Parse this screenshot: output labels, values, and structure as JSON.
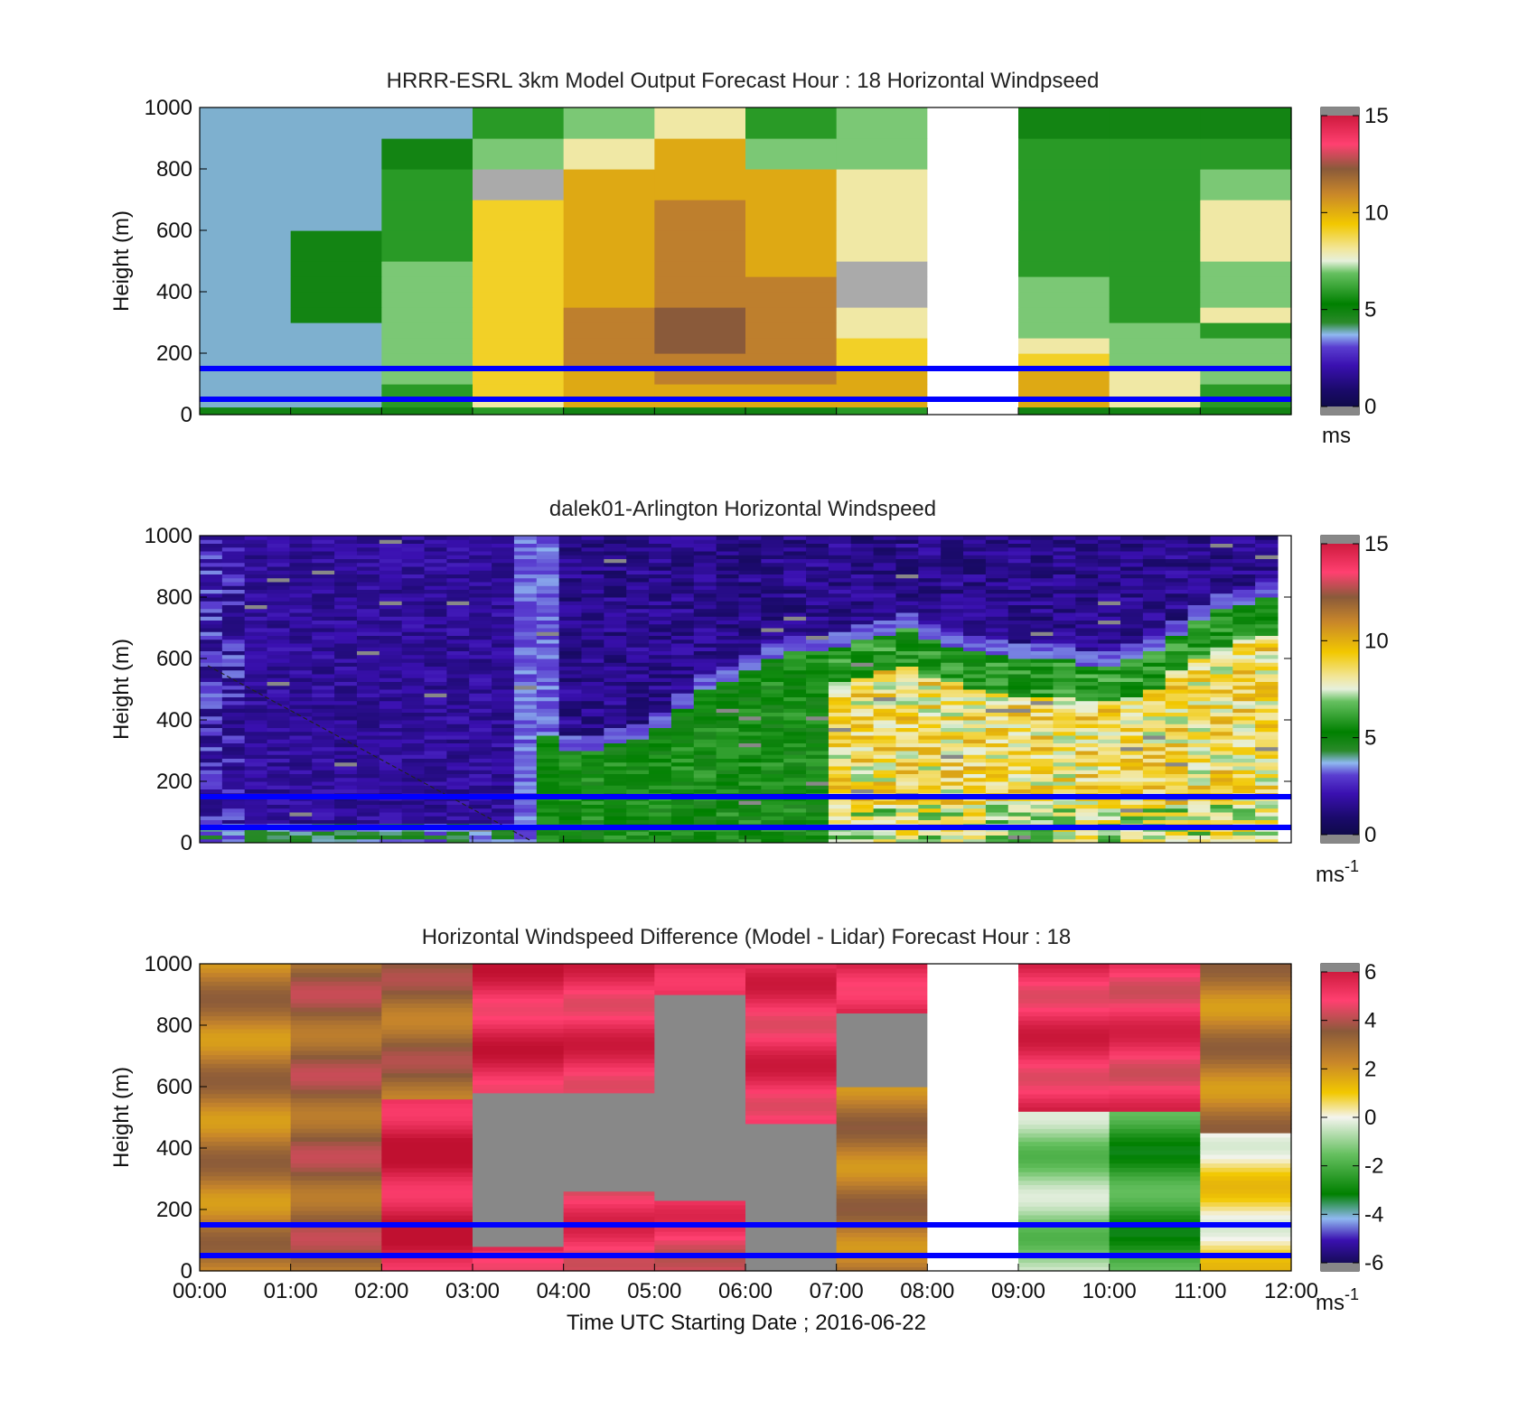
{
  "figure": {
    "xlabel": "Time UTC  Starting Date ; 2016-06-22"
  },
  "x_ticks": [
    "00:00",
    "01:00",
    "02:00",
    "03:00",
    "04:00",
    "05:00",
    "06:00",
    "07:00",
    "08:00",
    "09:00",
    "10:00",
    "11:00",
    "12:00"
  ],
  "chart_data": [
    {
      "type": "heatmap",
      "title": "HRRR-ESRL 3km Model Output   Forecast Hour : 18 Horizontal Windpseed",
      "ylabel": "Height (m)",
      "xlim": [
        0,
        12
      ],
      "ylim": [
        0,
        1000
      ],
      "y_ticks": [
        "0",
        "200",
        "400",
        "600",
        "800",
        "1000"
      ],
      "colorbar": {
        "ticks": [
          "0",
          "5",
          "10",
          "15"
        ],
        "unit_main": "ms",
        "unit_sup": "",
        "range": [
          0,
          15
        ]
      },
      "height_levels": [
        0,
        25,
        50,
        75,
        100,
        150,
        200,
        250,
        300,
        350,
        400,
        450,
        500,
        600,
        700,
        800,
        900,
        1000
      ],
      "time_bins_hours": [
        0,
        1,
        2,
        3,
        4,
        5,
        6,
        7,
        8,
        9,
        10,
        11,
        12
      ],
      "values": [
        [
          5,
          5,
          5,
          6,
          5,
          5,
          5,
          6,
          null,
          5,
          5,
          5
        ],
        [
          4,
          4,
          6,
          8,
          10,
          10,
          10,
          10,
          null,
          10,
          8,
          6
        ],
        [
          4,
          4,
          6,
          9,
          10,
          10,
          10,
          10,
          null,
          10,
          8,
          6
        ],
        [
          4,
          4,
          6,
          9,
          10,
          10,
          10,
          10,
          null,
          10,
          8,
          6
        ],
        [
          4,
          4,
          7,
          9,
          10,
          11,
          11,
          10,
          null,
          10,
          8,
          7
        ],
        [
          4,
          4,
          7,
          9,
          11,
          11,
          11,
          9,
          null,
          9,
          7,
          7
        ],
        [
          4,
          4,
          7,
          9,
          11,
          12,
          11,
          9,
          null,
          8,
          7,
          7
        ],
        [
          4,
          4,
          7,
          9,
          11,
          12,
          11,
          8,
          null,
          7,
          7,
          6
        ],
        [
          4,
          5,
          7,
          9,
          11,
          12,
          11,
          8,
          null,
          7,
          6,
          8
        ],
        [
          4,
          5,
          7,
          9,
          10,
          11,
          11,
          null,
          null,
          7,
          6,
          7
        ],
        [
          4,
          5,
          7,
          9,
          10,
          11,
          11,
          null,
          null,
          7,
          6,
          7
        ],
        [
          4,
          5,
          7,
          9,
          10,
          11,
          10,
          null,
          null,
          6,
          6,
          7
        ],
        [
          4,
          5,
          6,
          9,
          10,
          11,
          10,
          8,
          null,
          6,
          6,
          8
        ],
        [
          4,
          4,
          6,
          9,
          10,
          11,
          10,
          8,
          null,
          6,
          6,
          8
        ],
        [
          4,
          4,
          6,
          null,
          10,
          10,
          10,
          8,
          null,
          6,
          6,
          7
        ],
        [
          4,
          4,
          5,
          7,
          8,
          10,
          7,
          7,
          null,
          6,
          6,
          6
        ],
        [
          4,
          4,
          4,
          6,
          7,
          8,
          6,
          7,
          null,
          5,
          5,
          5
        ]
      ],
      "lines": [
        {
          "height": 50,
          "color": "#0000ff"
        },
        {
          "height": 150,
          "color": "#0000ff"
        }
      ]
    },
    {
      "type": "heatmap",
      "title": "dalek01-Arlington  Horizontal Windspeed",
      "ylabel": "Height (m)",
      "xlim": [
        0,
        12
      ],
      "ylim": [
        0,
        1000
      ],
      "y_ticks": [
        "0",
        "200",
        "400",
        "600",
        "800",
        "1000"
      ],
      "colorbar": {
        "ticks": [
          "0",
          "5",
          "10",
          "15"
        ],
        "unit_main": "ms",
        "unit_sup": "-1",
        "range": [
          0,
          15
        ]
      },
      "profile_top_m": [
        500,
        500,
        480,
        470,
        450,
        450,
        450,
        440,
        420,
        420,
        430,
        440,
        430,
        420,
        400,
        380,
        300,
        300,
        320,
        340,
        380,
        440,
        500,
        520,
        560,
        600,
        620,
        620,
        640,
        660,
        680,
        700,
        660,
        640,
        620,
        610,
        600,
        600,
        600,
        580,
        580,
        600,
        620,
        680,
        720,
        760,
        780,
        800
      ],
      "lidar_speed_summary": {
        "hours_0_3_5": "1.5-2.5",
        "hours_3_5_4": "3-4",
        "hours_4_7_low": "5-6",
        "hours_7_12_low": "7-10",
        "above_profile": "1-2.5"
      },
      "lines": [
        {
          "height": 50,
          "color": "#0000ff"
        },
        {
          "height": 150,
          "color": "#0000ff"
        }
      ]
    },
    {
      "type": "heatmap",
      "title": "Horizontal Windspeed Difference (Model - Lidar) Forecast Hour : 18",
      "ylabel": "Height (m)",
      "xlim": [
        0,
        12
      ],
      "ylim": [
        0,
        1000
      ],
      "y_ticks": [
        "0",
        "200",
        "400",
        "600",
        "800",
        "1000"
      ],
      "colorbar": {
        "ticks": [
          "-6",
          "-4",
          "-2",
          "0",
          "2",
          "4",
          "6"
        ],
        "unit_main": "ms",
        "unit_sup": "-1",
        "range": [
          -6,
          6
        ]
      },
      "blocks_m": [
        {
          "hour": 0,
          "segments": [
            [
              0,
              1000,
              2.5
            ]
          ]
        },
        {
          "hour": 1,
          "segments": [
            [
              0,
              1000,
              3.2
            ]
          ]
        },
        {
          "hour": 2,
          "segments": [
            [
              0,
              560,
              5.5
            ],
            [
              560,
              1000,
              3.0
            ]
          ]
        },
        {
          "hour": 3,
          "segments": [
            [
              0,
              80,
              5.2
            ],
            [
              80,
              580,
              null
            ],
            [
              580,
              1000,
              5.2
            ]
          ]
        },
        {
          "hour": 4,
          "segments": [
            [
              0,
              260,
              4.8
            ],
            [
              260,
              580,
              null
            ],
            [
              580,
              1000,
              5.0
            ]
          ]
        },
        {
          "hour": 5,
          "segments": [
            [
              0,
              230,
              4.6
            ],
            [
              230,
              900,
              null
            ],
            [
              900,
              1000,
              5.5
            ]
          ]
        },
        {
          "hour": 6,
          "segments": [
            [
              0,
              480,
              null
            ],
            [
              480,
              1000,
              5.0
            ]
          ]
        },
        {
          "hour": 7,
          "segments": [
            [
              0,
              600,
              2.6
            ],
            [
              600,
              840,
              null
            ],
            [
              840,
              1000,
              5.3
            ]
          ]
        },
        {
          "hour": 8,
          "segments": []
        },
        {
          "hour": 9,
          "segments": [
            [
              0,
              520,
              -1.0
            ],
            [
              520,
              1000,
              5.0
            ]
          ]
        },
        {
          "hour": 10,
          "segments": [
            [
              0,
              520,
              -2.3
            ],
            [
              520,
              1000,
              4.8
            ]
          ]
        },
        {
          "hour": 11,
          "segments": [
            [
              0,
              450,
              0.5
            ],
            [
              450,
              1000,
              2.5
            ]
          ]
        }
      ],
      "lines": [
        {
          "height": 50,
          "color": "#0000ff"
        },
        {
          "height": 150,
          "color": "#0000ff"
        }
      ]
    }
  ]
}
